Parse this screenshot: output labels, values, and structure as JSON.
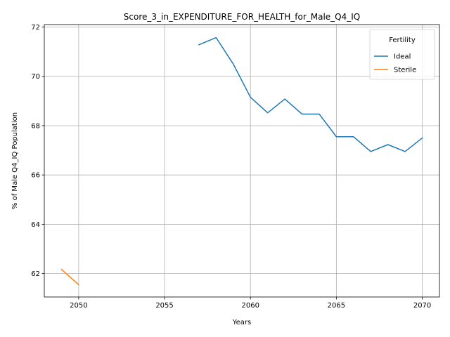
{
  "chart_data": {
    "type": "line",
    "title": "Score_3_in_EXPENDITURE_FOR_HEALTH_for_Male_Q4_IQ",
    "xlabel": "Years",
    "ylabel": "% of Male Q4_IQ Population",
    "xlim": [
      2048,
      2071
    ],
    "ylim": [
      61.05,
      72.1
    ],
    "xticks": [
      2050,
      2055,
      2060,
      2065,
      2070
    ],
    "yticks": [
      62,
      64,
      66,
      68,
      70,
      72
    ],
    "grid": true,
    "legend": {
      "title": "Fertility",
      "placement": "top-right"
    },
    "series": [
      {
        "name": "Ideal",
        "color": "#1f77b4",
        "x": [
          2057,
          2058,
          2059,
          2060,
          2061,
          2062,
          2063,
          2064,
          2065,
          2066,
          2067,
          2068,
          2069,
          2070
        ],
        "values": [
          71.28,
          71.57,
          70.5,
          69.15,
          68.52,
          69.08,
          68.47,
          68.47,
          67.55,
          67.55,
          66.95,
          67.23,
          66.95,
          67.5
        ]
      },
      {
        "name": "Sterile",
        "color": "#ff7f0e",
        "x": [
          2049,
          2050
        ],
        "values": [
          62.17,
          61.55
        ]
      }
    ]
  }
}
